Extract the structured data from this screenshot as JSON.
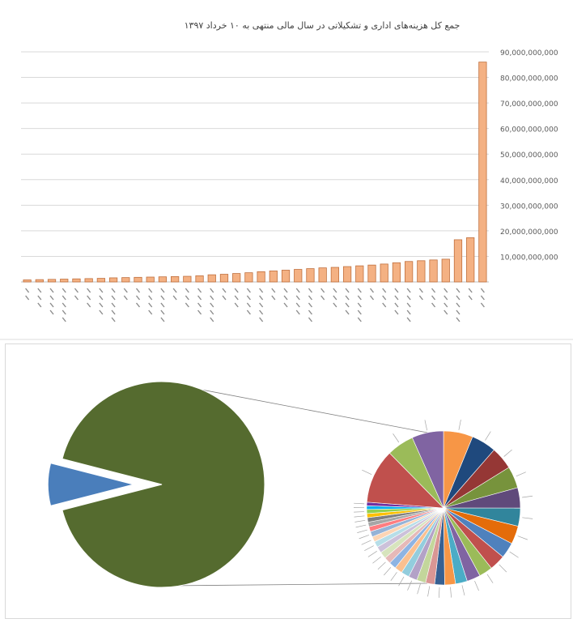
{
  "colors": {
    "bar_fill": "#f4b183",
    "bar_stroke": "#c0703e",
    "grid": "#d9d9d9",
    "axis_text": "#595959",
    "title": "#404040",
    "pie_main": "#556b2f",
    "pie_exploded": "#4a7ebb",
    "connector": "#808080"
  },
  "chart_data": [
    {
      "type": "bar",
      "title": "جمع کل هزینه‌های اداری و تشکیلاتی در سال مالی منتهی به ۱۰ خرداد ۱۳۹۷",
      "xlabel": "",
      "ylabel": "",
      "ylim": [
        0,
        90000000000
      ],
      "yticks": [
        10000000000,
        20000000000,
        30000000000,
        40000000000,
        50000000000,
        60000000000,
        70000000000,
        80000000000,
        90000000000
      ],
      "ytick_labels": [
        "10,000,000,000",
        "20,000,000,000",
        "30,000,000,000",
        "40,000,000,000",
        "50,000,000,000",
        "60,000,000,000",
        "70,000,000,000",
        "80,000,000,000",
        "90,000,000,000"
      ],
      "grid": true,
      "values": [
        800000000,
        900000000,
        1000000000,
        1100000000,
        1200000000,
        1300000000,
        1400000000,
        1600000000,
        1700000000,
        1800000000,
        1900000000,
        2000000000,
        2100000000,
        2200000000,
        2400000000,
        2800000000,
        3000000000,
        3300000000,
        3600000000,
        4000000000,
        4300000000,
        4600000000,
        4900000000,
        5200000000,
        5500000000,
        5700000000,
        6000000000,
        6300000000,
        6600000000,
        7000000000,
        7500000000,
        8000000000,
        8300000000,
        8600000000,
        8900000000,
        16500000000,
        17300000000,
        86000000000
      ]
    },
    {
      "type": "pie",
      "title": "",
      "main_values": [
        92,
        8
      ],
      "main_colors": [
        "#556b2f",
        "#4a7ebb"
      ],
      "breakdown_values": [
        6.5,
        5.5,
        5,
        4.8,
        4.5,
        4,
        4,
        3.5,
        3.5,
        3,
        3,
        2.6,
        2.4,
        2.2,
        2,
        2,
        1.9,
        1.8,
        1.7,
        1.6,
        1.5,
        1.5,
        1.4,
        1.3,
        1.2,
        1.2,
        1.1,
        1,
        1,
        0.9,
        0.9,
        0.8,
        0.8,
        12,
        6,
        7
      ],
      "breakdown_colors": [
        "#f79646",
        "#1f497d",
        "#953735",
        "#77933c",
        "#604a7b",
        "#31859c",
        "#e46c0a",
        "#4f81bd",
        "#c0504d",
        "#9bbb59",
        "#8064a2",
        "#4bacc6",
        "#f79646",
        "#376092",
        "#d99694",
        "#c3d69b",
        "#b3a2c7",
        "#93cddd",
        "#fac090",
        "#8eb4e3",
        "#e6b9b8",
        "#d7e4bd",
        "#ccc1da",
        "#b7dee8",
        "#fcd5b5",
        "#95b3d7",
        "#ff7c80",
        "#a6a6a6",
        "#7f7f7f",
        "#ffc000",
        "#92d050",
        "#00b0f0",
        "#7030a0",
        "#c0504d",
        "#9bbb59",
        "#8064a2"
      ]
    }
  ]
}
